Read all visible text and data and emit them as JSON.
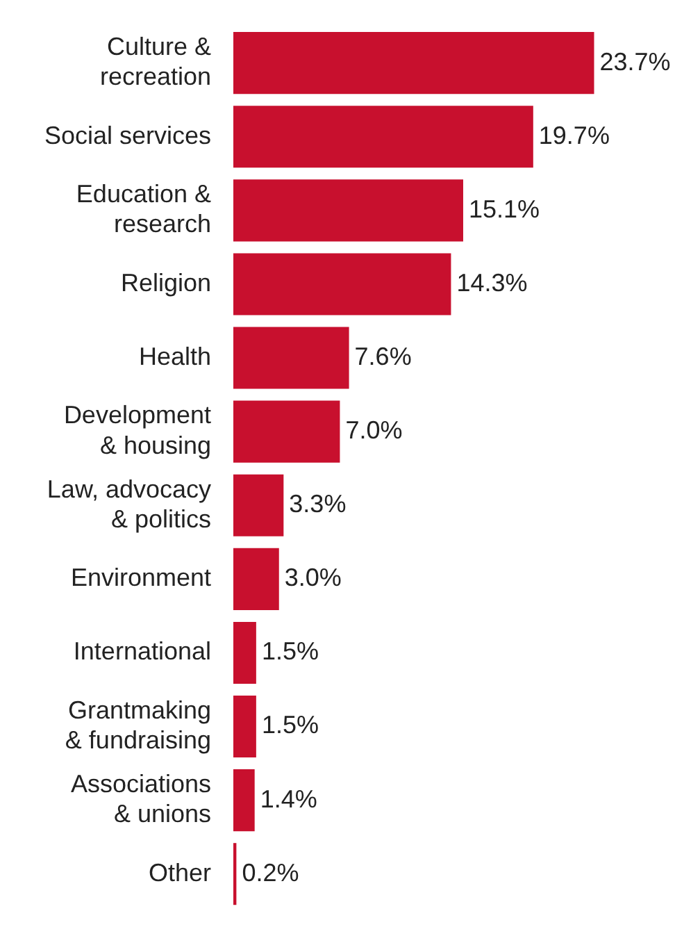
{
  "chart_data": {
    "type": "bar",
    "orientation": "horizontal",
    "categories": [
      "Culture &\nrecreation",
      "Social services",
      "Education &\nresearch",
      "Religion",
      "Health",
      "Development\n& housing",
      "Law, advocacy\n& politics",
      "Environment",
      "International",
      "Grantmaking\n& fundraising",
      "Associations\n& unions",
      "Other"
    ],
    "values": [
      23.7,
      19.7,
      15.1,
      14.3,
      7.6,
      7.0,
      3.3,
      3.0,
      1.5,
      1.5,
      1.4,
      0.2
    ],
    "value_labels": [
      "23.7%",
      "19.7%",
      "15.1%",
      "14.3%",
      "7.6%",
      "7.0%",
      "3.3%",
      "3.0%",
      "1.5%",
      "1.5%",
      "1.4%",
      "0.2%"
    ],
    "color": "#c8102e",
    "legend": false,
    "grid": false
  }
}
